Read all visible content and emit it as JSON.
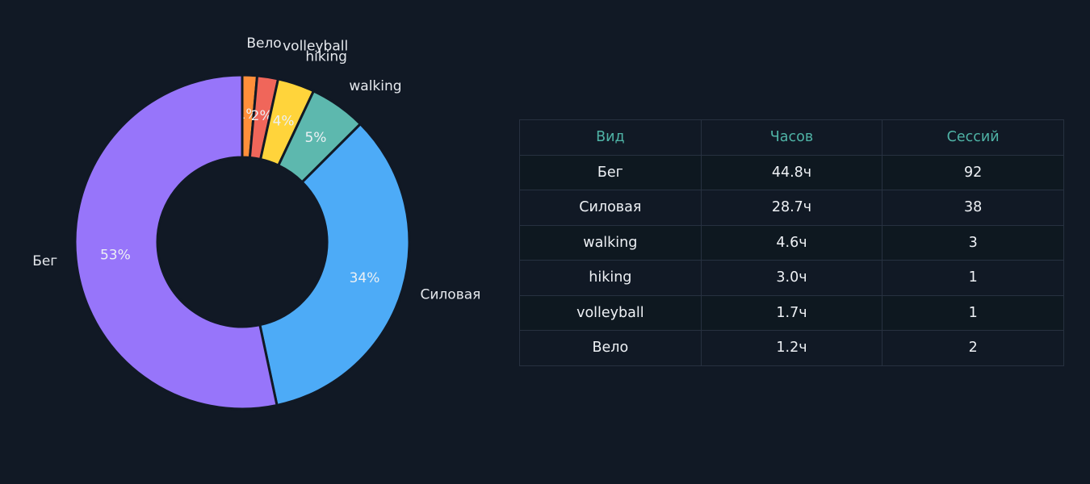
{
  "chart_data": [
    {
      "type": "pie",
      "variant": "donut",
      "start": "top, clockwise",
      "slices": [
        {
          "label": "Велo",
          "display_label": "Вело",
          "value": 1.2,
          "pct": "1%",
          "color": "#ff8f3a"
        },
        {
          "label": "volleyball",
          "value": 1.7,
          "pct": "2%",
          "color": "#f0665a"
        },
        {
          "label": "hiking",
          "value": 3.0,
          "pct": "4%",
          "color": "#ffd43b"
        },
        {
          "label": "walking",
          "value": 4.6,
          "pct": "5%",
          "color": "#5db8ae"
        },
        {
          "label": "Силовая",
          "value": 28.7,
          "pct": "34%",
          "color": "#4dabf7"
        },
        {
          "label": "Бег",
          "value": 44.8,
          "pct": "53%",
          "color": "#9775fa"
        }
      ]
    },
    {
      "type": "table",
      "columns": [
        "Вид",
        "Часов",
        "Сессий"
      ],
      "rows": [
        [
          "Бег",
          "44.8ч",
          "92"
        ],
        [
          "Силовая",
          "28.7ч",
          "38"
        ],
        [
          "walking",
          "4.6ч",
          "3"
        ],
        [
          "hiking",
          "3.0ч",
          "1"
        ],
        [
          "volleyball",
          "1.7ч",
          "1"
        ],
        [
          "Вело",
          "1.2ч",
          "2"
        ]
      ]
    }
  ],
  "colors": {
    "background": "#111925",
    "table_header_text": "#4fb3a6",
    "table_border": "#273140",
    "text": "#e6e9ee"
  }
}
